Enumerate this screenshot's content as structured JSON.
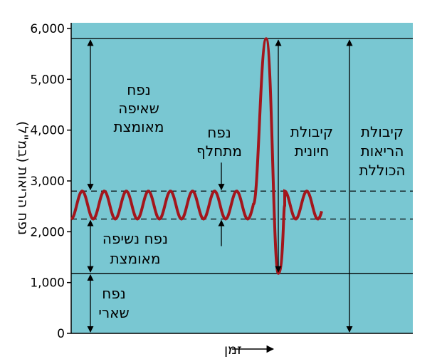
{
  "colors": {
    "background": "#79c7d2",
    "curve": "#a3161c",
    "lines": "#000000"
  },
  "chart_data": {
    "type": "line",
    "y_axis": {
      "title": "נפח הריאות (במ\"ל)",
      "ticks": [
        "6,000",
        "5,000",
        "4,000",
        "3,000",
        "2,000",
        "1,000",
        "0"
      ],
      "ylim": [
        0,
        6000
      ]
    },
    "x_axis": {
      "label": "זמן"
    },
    "levels": {
      "total_capacity": 5800,
      "inspiratory_peak": 2800,
      "expiratory_trough": 2250,
      "residual_volume": 1180
    },
    "regions": {
      "inspiratory_reserve": [
        "נפח",
        "שאיפה",
        "מאומצת"
      ],
      "tidal_volume": [
        "נפח",
        "מתחלף"
      ],
      "expiratory_reserve": [
        "נפח נשיפה",
        "מאומצת"
      ],
      "residual": [
        "נפח",
        "שארי"
      ],
      "vital_capacity": [
        "קיבולת",
        "חיונית"
      ],
      "total_lung_capacity": [
        "קיבולת",
        "הריאות",
        "הכוללת"
      ]
    }
  }
}
